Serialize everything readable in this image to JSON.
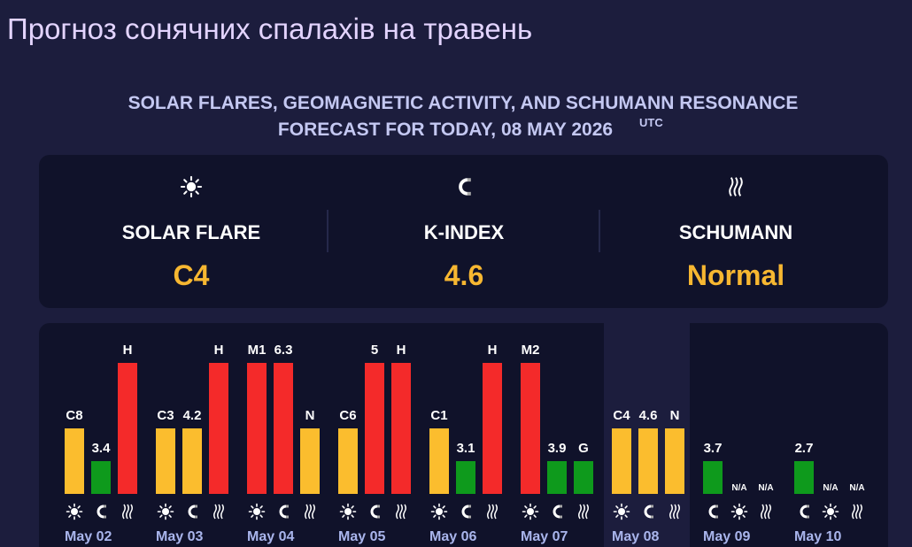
{
  "header": {
    "title": "Прогноз сонячних спалахів на травень",
    "subtitle_line1": "SOLAR FLARES, GEOMAGNETIC ACTIVITY, AND SCHUMANN RESONANCE",
    "subtitle_line2": "FORECAST FOR TODAY, 08 MAY 2026",
    "subtitle_sup": "UTC"
  },
  "summary": [
    {
      "label": "SOLAR FLARE",
      "value": "C4"
    },
    {
      "label": "K-INDEX",
      "value": 4.6
    },
    {
      "label": "SCHUMANN",
      "value": "Normal"
    }
  ],
  "highlight_day": 6,
  "days": [
    {
      "date": "May 02",
      "bars": [
        {
          "label": "C8",
          "color": "#fbbd2e",
          "icon": "sun"
        },
        {
          "label": 3.4,
          "color": "#0e9a1c",
          "icon": "magnet"
        },
        {
          "label": "H",
          "color": "#f42a2a",
          "icon": "waves"
        }
      ]
    },
    {
      "date": "May 03",
      "bars": [
        {
          "label": "C3",
          "color": "#fbbd2e",
          "icon": "sun"
        },
        {
          "label": 4.2,
          "color": "#fbbd2e",
          "icon": "magnet"
        },
        {
          "label": "H",
          "color": "#f42a2a",
          "icon": "waves"
        }
      ]
    },
    {
      "date": "May 04",
      "bars": [
        {
          "label": "M1",
          "color": "#f42a2a",
          "icon": "sun"
        },
        {
          "label": 6.3,
          "color": "#f42a2a",
          "icon": "magnet"
        },
        {
          "label": "N",
          "color": "#fbbd2e",
          "icon": "waves"
        }
      ]
    },
    {
      "date": "May 05",
      "bars": [
        {
          "label": "C6",
          "color": "#fbbd2e",
          "icon": "sun"
        },
        {
          "label": 5,
          "color": "#f42a2a",
          "icon": "magnet"
        },
        {
          "label": "H",
          "color": "#f42a2a",
          "icon": "waves"
        }
      ]
    },
    {
      "date": "May 06",
      "bars": [
        {
          "label": "C1",
          "color": "#fbbd2e",
          "icon": "sun"
        },
        {
          "label": 3.1,
          "color": "#0e9a1c",
          "icon": "magnet"
        },
        {
          "label": "H",
          "color": "#f42a2a",
          "icon": "waves"
        }
      ]
    },
    {
      "date": "May 07",
      "bars": [
        {
          "label": "M2",
          "color": "#f42a2a",
          "icon": "sun"
        },
        {
          "label": 3.9,
          "color": "#0e9a1c",
          "icon": "magnet"
        },
        {
          "label": "G",
          "color": "#0e9a1c",
          "icon": "waves"
        }
      ]
    },
    {
      "date": "May 08",
      "bars": [
        {
          "label": "C4",
          "color": "#fbbd2e",
          "icon": "sun"
        },
        {
          "label": 4.6,
          "color": "#fbbd2e",
          "icon": "magnet"
        },
        {
          "label": "N",
          "color": "#fbbd2e",
          "icon": "waves"
        }
      ]
    },
    {
      "date": "May 09",
      "bars": [
        {
          "label": 3.7,
          "color": "#0e9a1c",
          "icon": "magnet"
        },
        {
          "label": "N/A",
          "color": null,
          "icon": "sun"
        },
        {
          "label": "N/A",
          "color": null,
          "icon": "waves"
        }
      ]
    },
    {
      "date": "May 10",
      "bars": [
        {
          "label": 2.7,
          "color": "#0e9a1c",
          "icon": "magnet"
        },
        {
          "label": "N/A",
          "color": null,
          "icon": "sun"
        },
        {
          "label": "N/A",
          "color": null,
          "icon": "waves"
        }
      ]
    }
  ]
}
